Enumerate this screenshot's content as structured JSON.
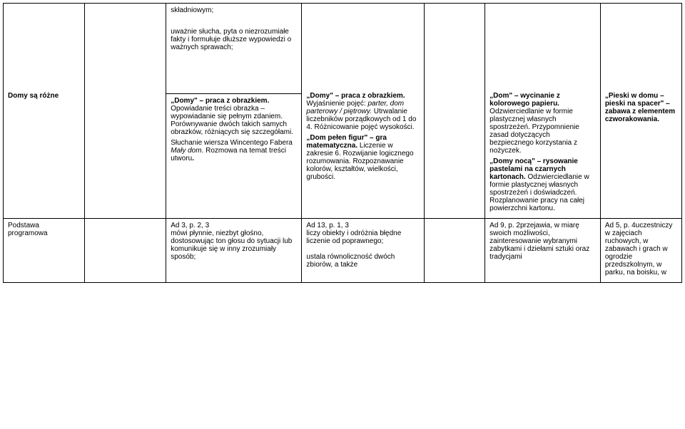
{
  "table": {
    "row1": {
      "c1": "",
      "c2": "",
      "c3_p1": "składniowym;",
      "c3_p2": "uważnie słucha, pyta o niezrozumiałe fakty i formułuje dłuższe wypowiedzi o ważnych sprawach;",
      "c4": "",
      "c5": "",
      "c6": "",
      "c7": ""
    },
    "row2": {
      "c1": "Domy są różne",
      "c2": "",
      "c3_p1a": "„Domy\" – praca z obrazkiem.",
      "c3_p1b": " Opowiadanie treści obrazka – wypowiadanie się pełnym zdaniem. Porównywanie dwóch takich samych obrazków, różniących się szczegółami.",
      "c3_p2a": "Słuchanie wiersza Wincentego Fabera ",
      "c3_p2b": "Mały dom",
      "c3_p2c": ". Rozmowa na temat treści utworu",
      "c3_p2d": ".",
      "c4_p1a": "„Domy\" – praca z obrazkiem.",
      "c4_p1b": " Wyjaśnienie pojęć: ",
      "c4_p1c": "parter, dom parterowy / piętrowy.",
      "c4_p1d": " Utrwalanie liczebników porządkowych od 1 do 4. Różnicowanie pojęć wysokości.",
      "c4_p2a": "„Dom pełen figur\" – gra matematyczna.",
      "c4_p2b": " Liczenie w zakresie 6. Rozwijanie logicznego rozumowania. Rozpoznawanie kolorów, kształtów, wielkości, grubości.",
      "c5": "",
      "c6_p1a": "„Dom\" – wycinanie z kolorowego papieru.",
      "c6_p1b": " Odzwierciedlanie w formie plastycznej własnych spostrzeżeń. Przypomnienie zasad dotyczących bezpiecznego korzystania z nożyczek.",
      "c6_p2a": "„Domy nocą\" – rysowanie pastelami na czarnych kartonach.",
      "c6_p2b": " Odzwierciedlanie w formie plastycznej własnych spostrzeżeń i doświadczeń. Rozplanowanie pracy na całej powierzchni kartonu.",
      "c7_p1a": "„Pieski w domu – pieski na spacer\" – zabawa z elementem czworakowania.",
      "c7_p1b": ""
    },
    "row3": {
      "c1": "Podstawa programowa",
      "c2": "",
      "c3": "Ad 3, p. 2, 3\nmówi płynnie, niezbyt głośno, dostosowując ton głosu do sytuacji lub komunikuje się w inny zrozumiały sposób;",
      "c4": "Ad 13, p. 1, 3\nliczy obiekty i odróżnia błędne liczenie od poprawnego;\n\nustala równoliczność dwóch zbiorów, a także",
      "c5": "",
      "c6": "Ad 9, p. 2przejawia, w miarę swoich możliwości, zainteresowanie wybranymi zabytkami i dziełami sztuki oraz tradycjami",
      "c7": "Ad 5, p. 4uczestniczy w zajęciach ruchowych, w zabawach i grach w ogrodzie przedszkolnym, w parku, na boisku, w"
    }
  }
}
